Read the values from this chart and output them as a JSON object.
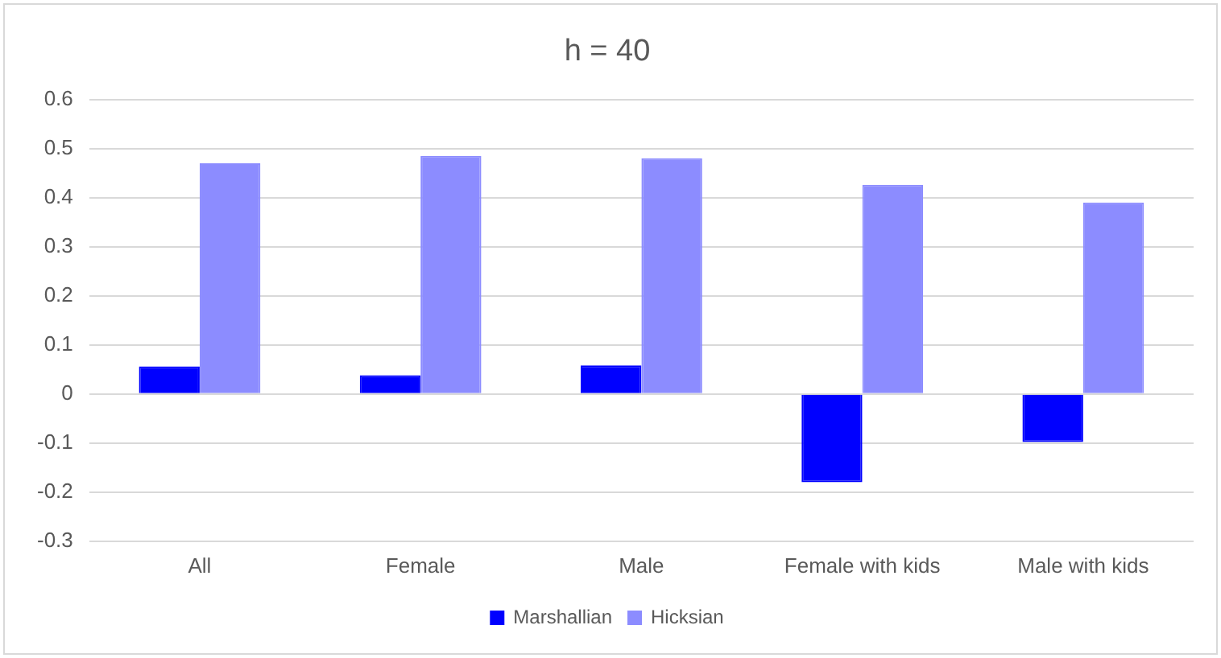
{
  "chart_data": {
    "type": "bar",
    "title": "h = 40",
    "categories": [
      "All",
      "Female",
      "Male",
      "Female with kids",
      "Male with kids"
    ],
    "series": [
      {
        "name": "Marshallian",
        "color": "#0000ff",
        "values": [
          0.056,
          0.038,
          0.058,
          -0.18,
          -0.098
        ]
      },
      {
        "name": "Hicksian",
        "color": "#8c8cff",
        "values": [
          0.47,
          0.485,
          0.48,
          0.426,
          0.39
        ]
      }
    ],
    "ylim": [
      -0.3,
      0.6
    ],
    "yticks": [
      -0.3,
      -0.2,
      -0.1,
      0,
      0.1,
      0.2,
      0.3,
      0.4,
      0.5,
      0.6
    ],
    "grid": "y",
    "legend": "bottom"
  }
}
